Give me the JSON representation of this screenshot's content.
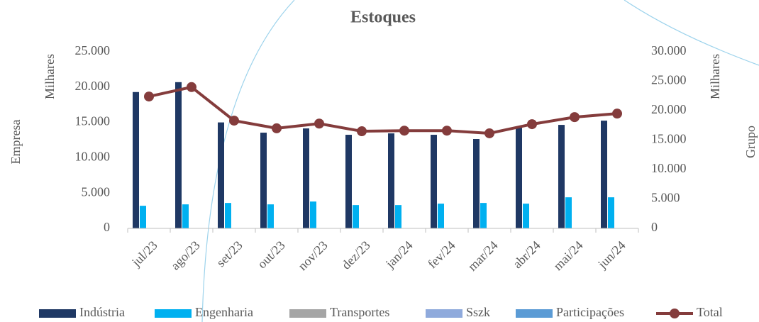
{
  "chart_data": {
    "type": "bar",
    "title": "Estoques",
    "y_label": "Empresa",
    "y_unit": "Milhares",
    "y2_label": "Grupo",
    "y2_unit": "Milhares",
    "categories": [
      "jul/23",
      "ago/23",
      "set/23",
      "out/23",
      "nov/23",
      "dez/23",
      "jan/24",
      "fev/24",
      "mar/24",
      "abr/24",
      "mai/24",
      "jun/24"
    ],
    "series": [
      {
        "name": "Indústria",
        "color": "#1f3864",
        "type": "bar",
        "values": [
          19300,
          20700,
          15000,
          13550,
          14150,
          13250,
          13450,
          13250,
          12650,
          14250,
          14650,
          15250
        ]
      },
      {
        "name": "Engenharia",
        "color": "#00b0f0",
        "type": "bar",
        "values": [
          3200,
          3400,
          3600,
          3400,
          3800,
          3300,
          3300,
          3500,
          3600,
          3500,
          4400,
          4400
        ]
      },
      {
        "name": "Transportes",
        "color": "#a5a5a5",
        "type": "bar",
        "values": [
          0,
          0,
          0,
          0,
          0,
          0,
          0,
          0,
          0,
          0,
          0,
          0
        ]
      },
      {
        "name": "Sszk",
        "color": "#8faadc",
        "type": "bar",
        "values": [
          0,
          0,
          0,
          0,
          0,
          0,
          0,
          0,
          0,
          0,
          0,
          0
        ]
      },
      {
        "name": "Participações",
        "color": "#5b9bd5",
        "type": "bar",
        "values": [
          0,
          0,
          0,
          0,
          0,
          0,
          0,
          0,
          0,
          0,
          0,
          0
        ]
      },
      {
        "name": "Total",
        "color": "#843c3c",
        "type": "line",
        "axis": "y2",
        "values": [
          22400,
          24000,
          18300,
          17000,
          17800,
          16500,
          16600,
          16600,
          16150,
          17700,
          18900,
          19500
        ]
      }
    ],
    "ylim": [
      0,
      25000
    ],
    "yticks": [
      0,
      {
        "value": 5000,
        "label": "5.000"
      },
      {
        "value": 10000,
        "label": "10.000"
      },
      {
        "value": 15000,
        "label": "15.000"
      },
      {
        "value": 20000,
        "label": "20.000"
      },
      {
        "value": 25000,
        "label": "25.000"
      }
    ],
    "y2lim": [
      0,
      30000
    ],
    "y2ticks": [
      0,
      {
        "value": 5000,
        "label": "5.000"
      },
      {
        "value": 10000,
        "label": "10.000"
      },
      {
        "value": 15000,
        "label": "15.000"
      },
      {
        "value": 20000,
        "label": "20.000"
      },
      {
        "value": 25000,
        "label": "25.000"
      },
      {
        "value": 30000,
        "label": "30.000"
      }
    ],
    "legend": "bottom"
  }
}
